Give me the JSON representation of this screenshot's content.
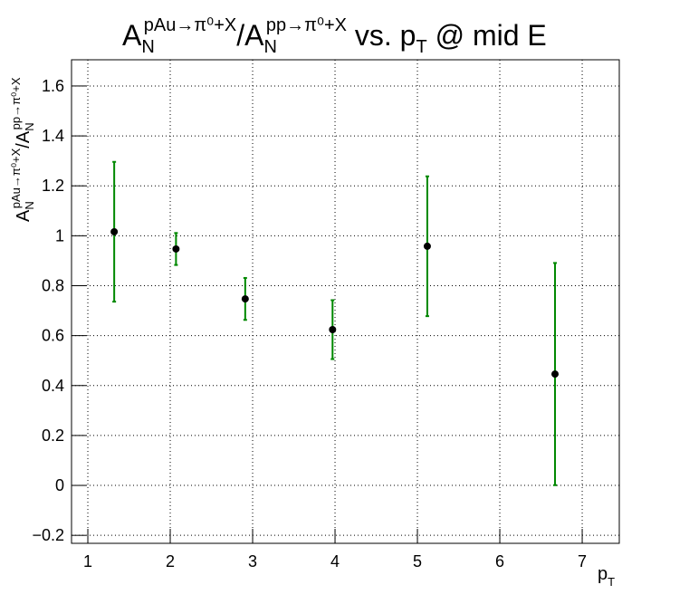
{
  "chart_data": {
    "type": "errorbar",
    "title": [
      "A",
      "N",
      "pAu→π⁰+X",
      "/A",
      "N",
      "pp→π⁰+X",
      " vs. p",
      "T",
      " @ mid E"
    ],
    "y_label": [
      "A",
      "N",
      "pAu→π⁰+X",
      "/A",
      "N",
      "pp→π⁰+X"
    ],
    "x_label": [
      "p",
      "T"
    ],
    "xlim": [
      0.802,
      7.45
    ],
    "ylim": [
      -0.232,
      1.705
    ],
    "xticks": [
      1,
      2,
      3,
      4,
      5,
      6,
      7
    ],
    "yticks": [
      {
        "value": -0.2,
        "label": "−0.2"
      },
      0,
      0.2,
      0.4,
      0.6,
      0.8,
      1,
      1.2,
      1.4,
      1.6
    ],
    "grid": true,
    "series": [
      {
        "color": "#000000",
        "error_color": "#008800",
        "x": [
          1.32,
          2.07,
          2.91,
          3.97,
          5.12,
          6.67
        ],
        "values": [
          1.016,
          0.947,
          0.747,
          0.624,
          0.958,
          0.446
        ],
        "errors": [
          0.28,
          0.064,
          0.084,
          0.118,
          0.28,
          0.445
        ]
      }
    ]
  }
}
